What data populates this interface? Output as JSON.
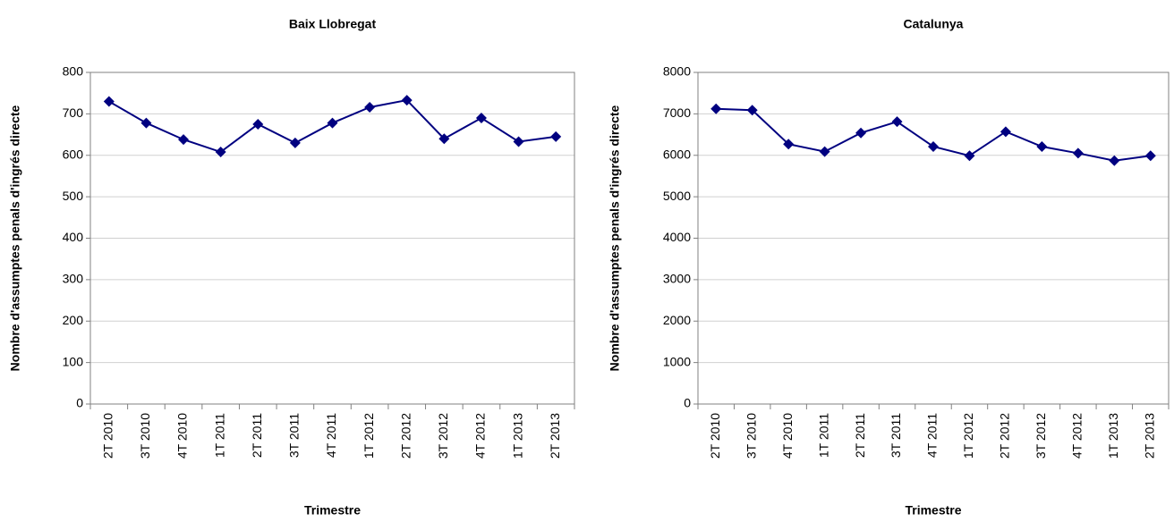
{
  "chart_data": [
    {
      "type": "line",
      "title": "Baix Llobregat",
      "xlabel": "Trimestre",
      "ylabel": "Nombre d'assumptes penals d'ingrés directe",
      "categories": [
        "2T 2010",
        "3T 2010",
        "4T 2010",
        "1T 2011",
        "2T 2011",
        "3T 2011",
        "4T 2011",
        "1T 2012",
        "2T 2012",
        "3T 2012",
        "4T 2012",
        "1T 2013",
        "2T 2013"
      ],
      "values": [
        730,
        678,
        638,
        608,
        675,
        630,
        678,
        716,
        733,
        640,
        690,
        633,
        645
      ],
      "color": "#000080",
      "ylim": [
        0,
        800
      ],
      "yticks": [
        0,
        100,
        200,
        300,
        400,
        500,
        600,
        700,
        800
      ],
      "grid": true
    },
    {
      "type": "line",
      "title": "Catalunya",
      "xlabel": "Trimestre",
      "ylabel": "Nombre d'assumptes penals d'ingrés directe",
      "categories": [
        "2T 2010",
        "3T 2010",
        "4T 2010",
        "1T 2011",
        "2T 2011",
        "3T 2011",
        "4T 2011",
        "1T 2012",
        "2T 2012",
        "3T 2012",
        "4T 2012",
        "1T 2013",
        "2T 2013"
      ],
      "values": [
        7120,
        7090,
        6270,
        6090,
        6540,
        6810,
        6210,
        5990,
        6570,
        6210,
        6050,
        5870,
        5990
      ],
      "color": "#000080",
      "ylim": [
        0,
        8000
      ],
      "yticks": [
        0,
        1000,
        2000,
        3000,
        4000,
        5000,
        6000,
        7000,
        8000
      ],
      "grid": true
    }
  ]
}
